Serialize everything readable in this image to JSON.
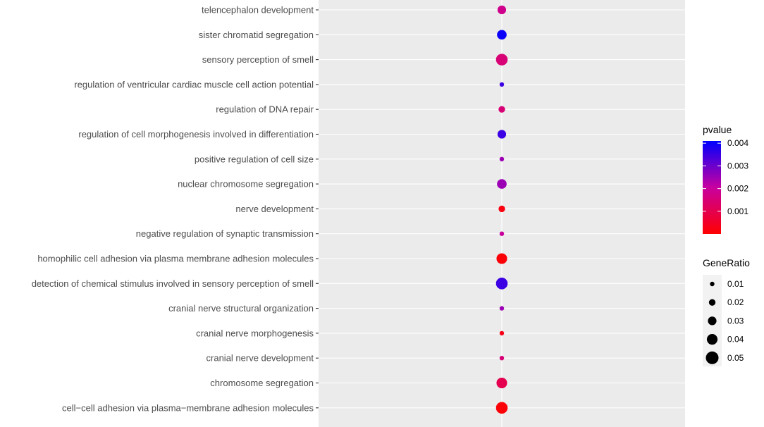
{
  "chart_data": {
    "type": "scatter",
    "title": "",
    "xlabel": "",
    "ylabel": "",
    "categories": [
      "telencephalon development",
      "sister chromatid segregation",
      "sensory perception of smell",
      "regulation of ventricular cardiac muscle cell action potential",
      "regulation of DNA repair",
      "regulation of cell morphogenesis involved in differentiation",
      "positive regulation of cell size",
      "nuclear chromosome segregation",
      "nerve development",
      "negative regulation of synaptic transmission",
      "homophilic cell adhesion via plasma membrane adhesion molecules",
      "detection of chemical stimulus involved in sensory perception of smell",
      "cranial nerve structural organization",
      "cranial nerve morphogenesis",
      "cranial nerve development",
      "chromosome segregation",
      "cell−cell adhesion via plasma−membrane adhesion molecules"
    ],
    "points": [
      {
        "term": "telencephalon development",
        "gene_ratio": 0.03,
        "pvalue": 0.0018
      },
      {
        "term": "sister chromatid segregation",
        "gene_ratio": 0.035,
        "pvalue": 0.004
      },
      {
        "term": "sensory perception of smell",
        "gene_ratio": 0.045,
        "pvalue": 0.0015
      },
      {
        "term": "regulation of ventricular cardiac muscle cell action potential",
        "gene_ratio": 0.01,
        "pvalue": 0.0035
      },
      {
        "term": "regulation of DNA repair",
        "gene_ratio": 0.02,
        "pvalue": 0.0015
      },
      {
        "term": "regulation of cell morphogenesis involved in differentiation",
        "gene_ratio": 0.03,
        "pvalue": 0.0035
      },
      {
        "term": "positive regulation of cell size",
        "gene_ratio": 0.01,
        "pvalue": 0.0025
      },
      {
        "term": "nuclear chromosome segregation",
        "gene_ratio": 0.035,
        "pvalue": 0.0025
      },
      {
        "term": "nerve development",
        "gene_ratio": 0.02,
        "pvalue": 0.0002
      },
      {
        "term": "negative regulation of synaptic transmission",
        "gene_ratio": 0.01,
        "pvalue": 0.002
      },
      {
        "term": "homophilic cell adhesion via plasma membrane adhesion molecules",
        "gene_ratio": 0.04,
        "pvalue": 0.0001
      },
      {
        "term": "detection of chemical stimulus involved in sensory perception of smell",
        "gene_ratio": 0.045,
        "pvalue": 0.0035
      },
      {
        "term": "cranial nerve structural organization",
        "gene_ratio": 0.01,
        "pvalue": 0.0025
      },
      {
        "term": "cranial nerve morphogenesis",
        "gene_ratio": 0.01,
        "pvalue": 0.0003
      },
      {
        "term": "cranial nerve development",
        "gene_ratio": 0.01,
        "pvalue": 0.0015
      },
      {
        "term": "chromosome segregation",
        "gene_ratio": 0.04,
        "pvalue": 0.001
      },
      {
        "term": "cell−cell adhesion via plasma−membrane adhesion molecules",
        "gene_ratio": 0.045,
        "pvalue": 0.0001
      }
    ],
    "color_legend": {
      "title": "pvalue",
      "ticks": [
        0.004,
        0.003,
        0.002,
        0.001
      ],
      "tick_labels": [
        "0.004",
        "0.003",
        "0.002",
        "0.001"
      ],
      "range": [
        0,
        0.0041
      ],
      "low_color": "#ff0000",
      "high_color": "#0000ff"
    },
    "size_legend": {
      "title": "GeneRatio",
      "values": [
        0.01,
        0.02,
        0.03,
        0.04,
        0.05
      ],
      "labels": [
        "0.01",
        "0.02",
        "0.03",
        "0.04",
        "0.05"
      ],
      "marker_color": "#000000"
    },
    "panel_background": "#ebebeb",
    "grid_color": "#ffffff",
    "grid": true,
    "legend_position": "right"
  }
}
